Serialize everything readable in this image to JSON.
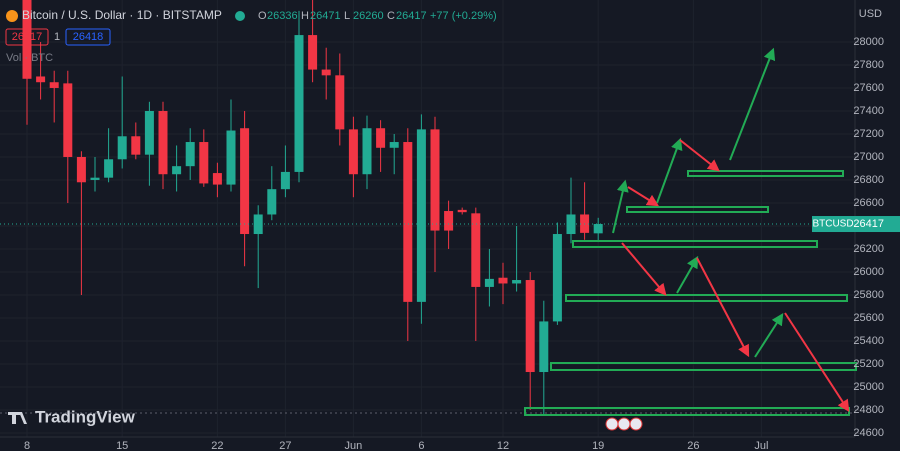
{
  "chart_data": {
    "type": "candlestick",
    "title": "Bitcoin / U.S. Dollar · 1D · BITSTAMP",
    "ohlc": [
      {
        "label": "O",
        "value": 26336
      },
      {
        "label": "H",
        "value": 26471
      },
      {
        "label": "L",
        "value": 26260
      },
      {
        "label": "C",
        "value": 26417
      }
    ],
    "change": "+77 (+0.29%)",
    "sell_price": 26417,
    "spread": 1,
    "buy_price": 26418,
    "volume_label": "Vol · BTC",
    "currency": "USD",
    "symbol_tag": "BTCUSD",
    "last_price": 26417,
    "brand": "TradingView",
    "up_color": "#22ab94",
    "down_color": "#f23645",
    "categories": [
      "8",
      null,
      null,
      null,
      null,
      null,
      null,
      "15",
      null,
      null,
      null,
      null,
      null,
      null,
      "22",
      null,
      null,
      null,
      null,
      "27",
      null,
      null,
      null,
      null,
      "Jun",
      null,
      null,
      null,
      null,
      "6",
      null,
      null,
      null,
      null,
      null,
      "12",
      null,
      null,
      null,
      null,
      null,
      null,
      "19",
      null,
      null,
      null,
      null,
      null,
      null,
      "26",
      null,
      null,
      null,
      null,
      "Jul",
      null,
      null,
      null,
      null,
      null,
      null
    ],
    "open": [
      28400,
      27700,
      27650,
      27640,
      27000,
      26800,
      26820,
      26980,
      27180,
      27020,
      27400,
      26850,
      26920,
      27130,
      26860,
      26760,
      27250,
      26330,
      26500,
      26720,
      26870,
      28060,
      27760,
      27710,
      27240,
      26850,
      27250,
      27080,
      27130,
      25740,
      27240,
      26530,
      26540,
      26510,
      25870,
      25950,
      25900,
      25930,
      25130,
      25570,
      26330,
      26500,
      26336,
      null,
      null,
      null,
      null,
      null,
      null,
      null,
      null,
      null,
      null,
      null,
      null,
      null,
      null,
      null,
      null,
      null,
      null
    ],
    "high": [
      28450,
      28000,
      27750,
      27750,
      27050,
      27000,
      27250,
      27700,
      27300,
      27480,
      27480,
      27100,
      27250,
      27240,
      26950,
      27500,
      27400,
      26580,
      26920,
      27100,
      28270,
      28420,
      27950,
      27900,
      27350,
      27360,
      27320,
      27200,
      27250,
      27370,
      27350,
      26620,
      26560,
      26560,
      26200,
      26080,
      26400,
      26000,
      25750,
      26430,
      26820,
      26780,
      26471,
      null,
      null,
      null,
      null,
      null,
      null,
      null,
      null,
      null,
      null,
      null,
      null,
      null,
      null,
      null,
      null,
      null,
      null
    ],
    "low": [
      27280,
      27500,
      27300,
      26600,
      25800,
      26700,
      26780,
      26900,
      26980,
      26750,
      26720,
      26700,
      26800,
      26740,
      26650,
      26700,
      26050,
      25860,
      26450,
      26650,
      26780,
      27650,
      27500,
      27100,
      26650,
      26720,
      26870,
      26850,
      25400,
      25550,
      26000,
      26200,
      26500,
      25400,
      25700,
      25720,
      25830,
      24800,
      24750,
      25540,
      26250,
      26280,
      26260,
      null,
      null,
      null,
      null,
      null,
      null,
      null,
      null,
      null,
      null,
      null,
      null,
      null,
      null,
      null,
      null,
      null,
      null
    ],
    "close": [
      27680,
      27650,
      27600,
      27000,
      26780,
      26820,
      26980,
      27180,
      27020,
      27400,
      26850,
      26920,
      27130,
      26770,
      26760,
      27230,
      26330,
      26500,
      26720,
      26870,
      28060,
      27760,
      27710,
      27240,
      26850,
      27250,
      27080,
      27130,
      25740,
      27240,
      26360,
      26360,
      26520,
      25870,
      25940,
      25900,
      25930,
      25130,
      25570,
      26330,
      26500,
      26340,
      26417,
      null,
      null,
      null,
      null,
      null,
      null,
      null,
      null,
      null,
      null,
      null,
      null,
      null,
      null,
      null,
      null,
      null,
      null
    ],
    "ylim": [
      24565,
      28365
    ],
    "yticks": [
      24600,
      24800,
      25000,
      25200,
      25400,
      25600,
      25800,
      26000,
      26200,
      26400,
      26600,
      26800,
      27000,
      27200,
      27400,
      27600,
      27800,
      28000
    ],
    "grid": true
  }
}
